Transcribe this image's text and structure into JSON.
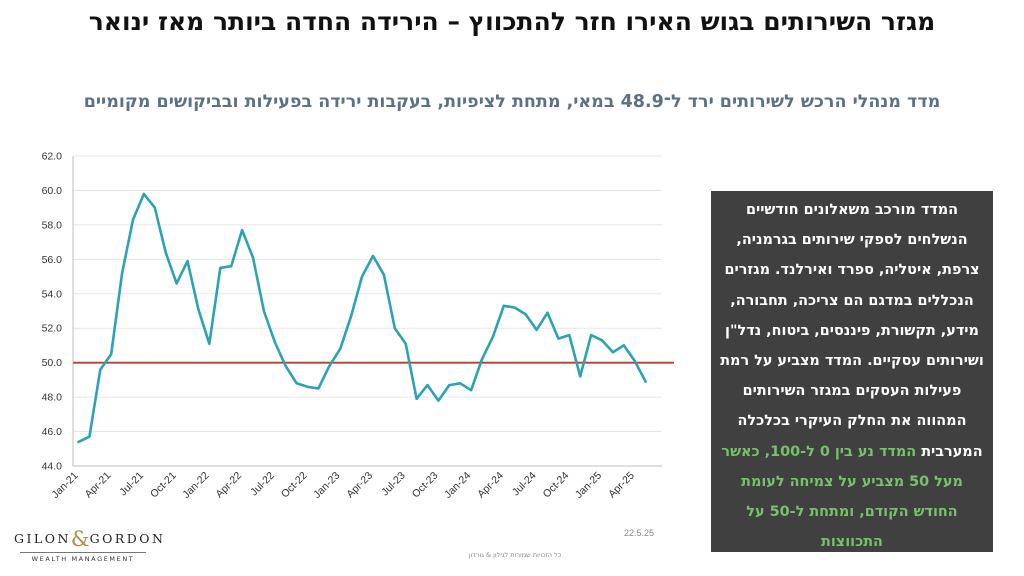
{
  "title": "מגזר השירותים בגוש האירו חזר להתכווץ – הירידה החדה ביותר מאז ינואר",
  "subtitle": "מדד מנהלי הרכש לשירותים ירד ל־48.9 במאי, מתחת לציפיות, בעקבות ירידה בפעילות ובביקושים מקומיים",
  "textbox": {
    "main": "המדד מורכב משאלונים חודשיים הנשלחים לספקי שירותים בגרמניה, צרפת, איטליה, ספרד ואירלנד. מגזרים הנכללים במדגם הם צריכה, תחבורה, מידע, תקשורת, פיננסים, ביטוח, נדל\"ן ושירותים עסקיים. המדד מצביע על רמת פעילות העסקים במגזר השירותים המהווה את החלק העיקרי בכלכלה המערבית",
    "highlight": "המדד נע בין 0 ל-100, כאשר מעל 50 מצביע על צמיחה לעומת החודש הקודם, ומתחת ל-50 על התכווצות",
    "highlight_color": "#76c26a",
    "background_color": "#404040"
  },
  "logo": {
    "left": "GILON",
    "amp": "&",
    "right": "GORDON",
    "sub": "WEALTH MANAGEMENT"
  },
  "date": "22.5.25",
  "footer": "כל הזכויות שמורות לגילון & גורדון",
  "chart_data": {
    "type": "line",
    "title": "",
    "xlabel": "",
    "ylabel": "",
    "ylim": [
      44.0,
      62.0
    ],
    "yticks": [
      "44.0",
      "46.0",
      "48.0",
      "50.0",
      "52.0",
      "54.0",
      "56.0",
      "58.0",
      "60.0",
      "62.0"
    ],
    "x": [
      "Jan-21",
      "Feb-21",
      "Mar-21",
      "Apr-21",
      "May-21",
      "Jun-21",
      "Jul-21",
      "Aug-21",
      "Sep-21",
      "Oct-21",
      "Nov-21",
      "Dec-21",
      "Jan-22",
      "Feb-22",
      "Mar-22",
      "Apr-22",
      "May-22",
      "Jun-22",
      "Jul-22",
      "Aug-22",
      "Sep-22",
      "Oct-22",
      "Nov-22",
      "Dec-22",
      "Jan-23",
      "Feb-23",
      "Mar-23",
      "Apr-23",
      "May-23",
      "Jun-23",
      "Jul-23",
      "Aug-23",
      "Sep-23",
      "Oct-23",
      "Nov-23",
      "Dec-23",
      "Jan-24",
      "Feb-24",
      "Mar-24",
      "Apr-24",
      "May-24",
      "Jun-24",
      "Jul-24",
      "Aug-24",
      "Sep-24",
      "Oct-24",
      "Nov-24",
      "Dec-24",
      "Jan-25",
      "Feb-25",
      "Mar-25",
      "Apr-25",
      "May-25"
    ],
    "xtick_labels": [
      "Jan-21",
      "Apr-21",
      "Jul-21",
      "Oct-21",
      "Jan-22",
      "Apr-22",
      "Jul-22",
      "Oct-22",
      "Jan-23",
      "Apr-23",
      "Jul-23",
      "Oct-23",
      "Jan-24",
      "Apr-24",
      "Jul-24",
      "Oct-24",
      "Jan-25",
      "Apr-25"
    ],
    "series": [
      {
        "color": "#2aa3b3",
        "values": [
          45.4,
          45.7,
          49.6,
          50.5,
          55.2,
          58.3,
          59.8,
          59.0,
          56.4,
          54.6,
          55.9,
          53.1,
          51.1,
          55.5,
          55.6,
          57.7,
          56.1,
          53.0,
          51.2,
          49.8,
          48.8,
          48.6,
          48.5,
          49.8,
          50.8,
          52.7,
          55.0,
          56.2,
          55.1,
          52.0,
          51.1,
          47.9,
          48.7,
          47.8,
          48.7,
          48.8,
          48.4,
          50.2,
          51.5,
          53.3,
          53.2,
          52.8,
          51.9,
          52.9,
          51.4,
          51.6,
          49.2,
          51.6,
          51.3,
          50.6,
          51.0,
          50.1,
          48.9
        ]
      }
    ],
    "reference_line": {
      "y": 50.0,
      "color": "#c0392b"
    },
    "grid": true,
    "legend": "none"
  }
}
